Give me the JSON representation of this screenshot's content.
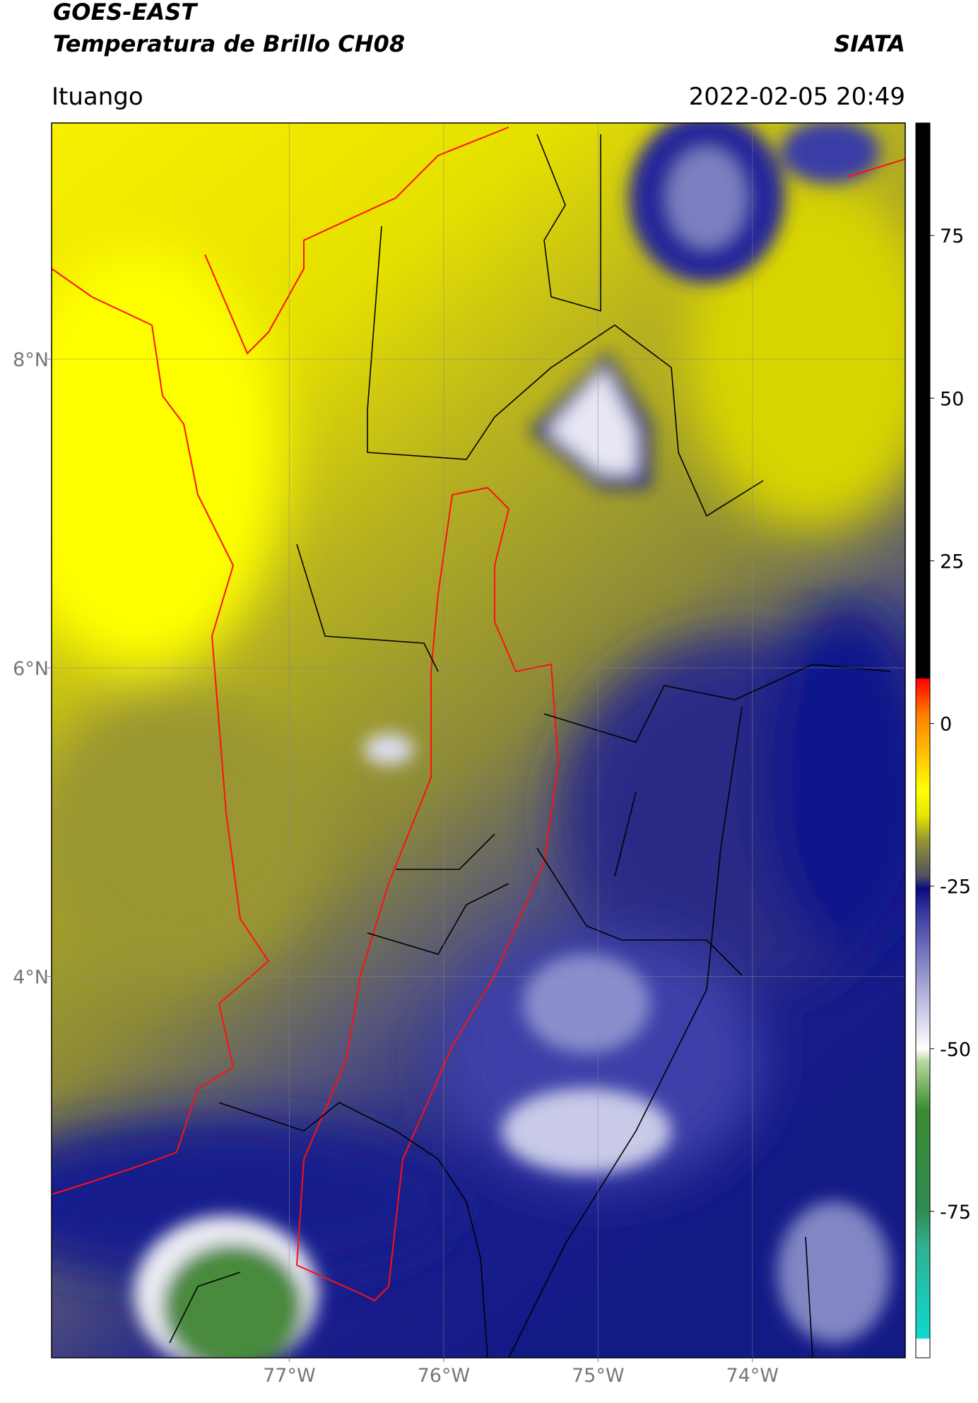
{
  "chart_data": {
    "type": "map",
    "title": "GOES-EAST",
    "subtitle": "Temperatura de Brillo CH08",
    "source": "SIATA",
    "location": "Ituango",
    "datetime": "2022-02-05 20:49",
    "xlim": [
      -78.54,
      -73.01
    ],
    "ylim": [
      1.53,
      9.53
    ],
    "xticks": [
      {
        "value": -77,
        "label": "77°W"
      },
      {
        "value": -76,
        "label": "76°W"
      },
      {
        "value": -75,
        "label": "75°W"
      },
      {
        "value": -74,
        "label": "74°W"
      }
    ],
    "yticks": [
      {
        "value": 4,
        "label": "4°N"
      },
      {
        "value": 6,
        "label": "6°N"
      },
      {
        "value": 8,
        "label": "8°N"
      }
    ],
    "colorbar": {
      "lim": [
        -97.5,
        92.3
      ],
      "ticks": [
        -75,
        -50,
        -25,
        0,
        25,
        50,
        75
      ]
    },
    "grid": true
  }
}
